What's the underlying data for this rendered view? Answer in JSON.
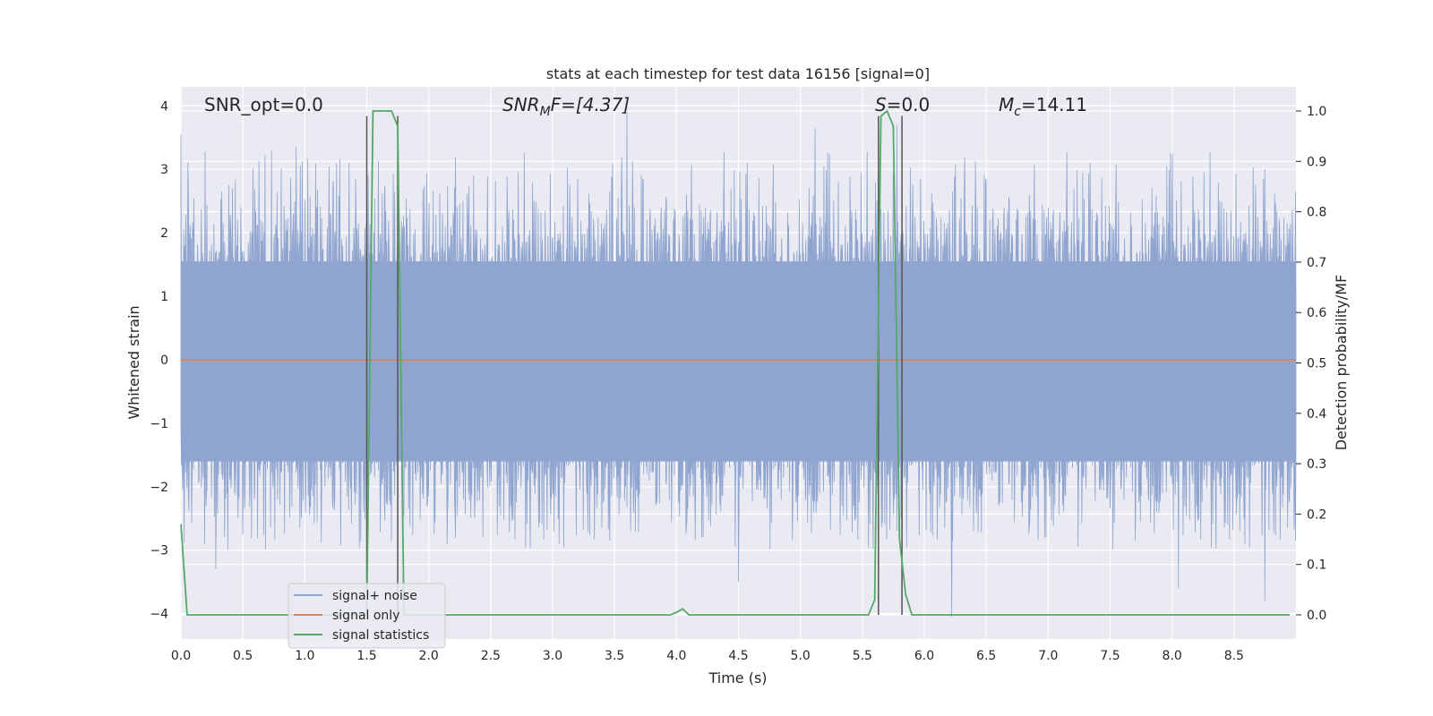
{
  "chart_data": {
    "type": "line",
    "title": "stats at each timestep for test data 16156 [signal=0]",
    "xlabel": "Time (s)",
    "ylabel_left": "Whitened strain",
    "ylabel_right": "Detection probability/MF",
    "xlim": [
      0,
      9.0
    ],
    "ylim_left": [
      -4.4,
      4.3
    ],
    "ylim_right": [
      -0.048,
      1.048
    ],
    "x_ticks": [
      "0.0",
      "0.5",
      "1.0",
      "1.5",
      "2.0",
      "2.5",
      "3.0",
      "3.5",
      "4.0",
      "4.5",
      "5.0",
      "5.5",
      "6.0",
      "6.5",
      "7.0",
      "7.5",
      "8.0",
      "8.5"
    ],
    "y_left_ticks": [
      "4",
      "3",
      "2",
      "1",
      "0",
      "−1",
      "−2",
      "−3",
      "−4"
    ],
    "y_right_ticks": [
      "1.0",
      "0.9",
      "0.8",
      "0.7",
      "0.6",
      "0.5",
      "0.4",
      "0.3",
      "0.2",
      "0.1",
      "0.0"
    ],
    "grid": true,
    "legend_position": "lower-left",
    "annotations": {
      "snr_opt": "SNR_opt=0.0",
      "snr_mf_main": "SNR",
      "snr_mf_sub": "M",
      "snr_mf_rest": "F=[4.37]",
      "s_main": "S",
      "s_rest": "=0.0",
      "mc_main": "M",
      "mc_sub": "c",
      "mc_rest": "=14.11"
    },
    "series": [
      {
        "name": "signal+ noise",
        "color": "#8fa5cf",
        "axis": "left",
        "description_values": "noise band approx ±1.6, peaks up to 3.9",
        "peaks": [
          {
            "x": 0.0,
            "y": 3.55
          },
          {
            "x": 0.93,
            "y": 3.35
          },
          {
            "x": 3.6,
            "y": 3.9
          },
          {
            "x": 5.12,
            "y": 3.65
          },
          {
            "x": 5.78,
            "y": 3.7
          },
          {
            "x": 8.75,
            "y": 3.0
          },
          {
            "x": 0.28,
            "y": -3.3
          },
          {
            "x": 4.5,
            "y": -3.5
          },
          {
            "x": 6.22,
            "y": -4.05
          },
          {
            "x": 8.05,
            "y": -3.6
          },
          {
            "x": 8.75,
            "y": -3.8
          }
        ]
      },
      {
        "name": "signal only",
        "color": "#dd8452",
        "axis": "left",
        "values_constant": 0.0
      },
      {
        "name": "signal statistics",
        "color": "#55a868",
        "axis": "right",
        "x": [
          0.0,
          0.05,
          0.1,
          1.5,
          1.55,
          1.6,
          1.7,
          1.75,
          1.8,
          1.85,
          3.95,
          4.0,
          4.05,
          4.1,
          5.55,
          5.6,
          5.65,
          5.7,
          5.75,
          5.8,
          5.85,
          5.9,
          5.95,
          8.95
        ],
        "y": [
          0.18,
          0.0,
          0.0,
          0.0,
          1.0,
          1.0,
          1.0,
          0.97,
          0.0,
          0.0,
          0.0,
          0.005,
          0.012,
          0.0,
          0.0,
          0.03,
          0.99,
          1.0,
          0.97,
          0.15,
          0.04,
          0.0,
          0.0,
          0.0
        ]
      }
    ],
    "vertical_lines": [
      1.5,
      1.75,
      5.63,
      5.82
    ]
  }
}
